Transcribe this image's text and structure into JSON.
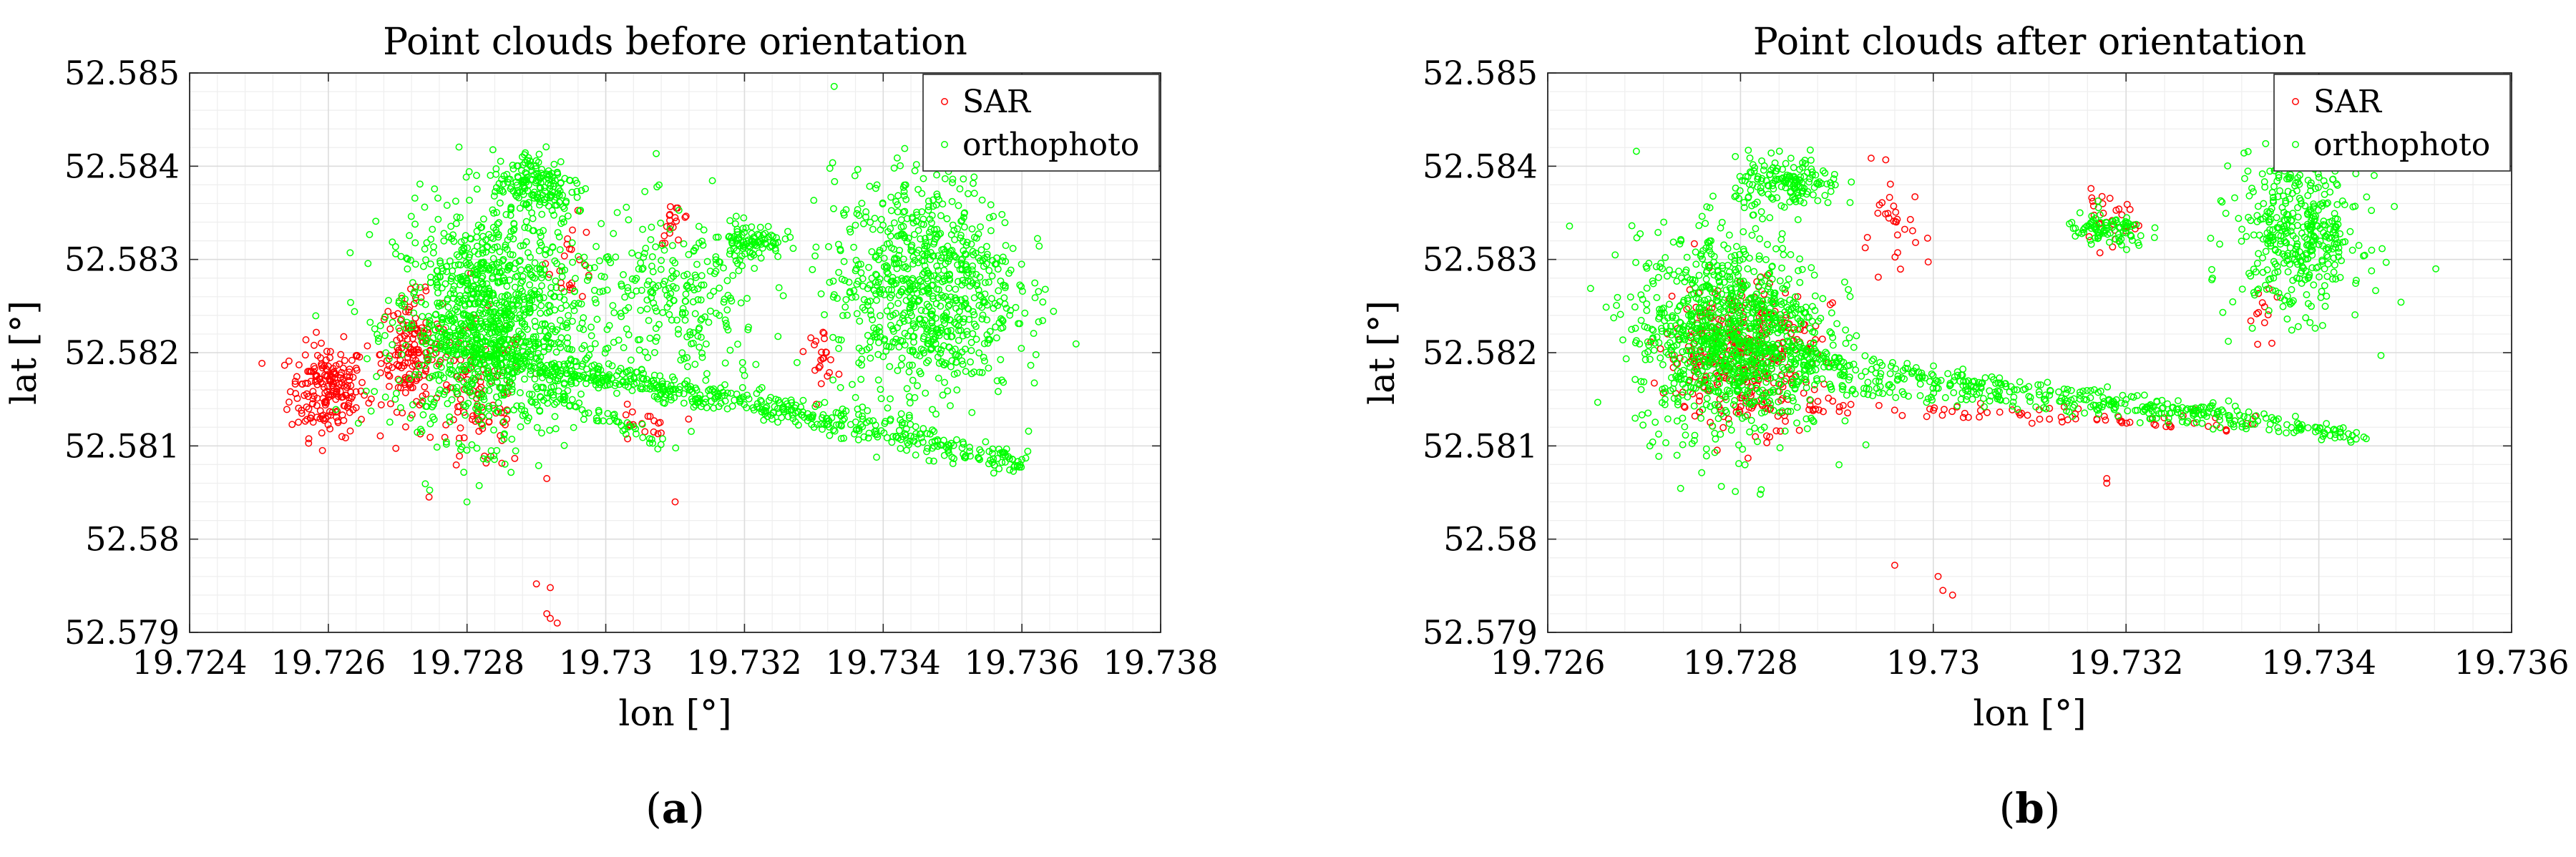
{
  "chart_data": [
    {
      "type": "scatter",
      "title": "Point clouds before orientation",
      "xlabel": "lon [°]",
      "ylabel": "lat [°]",
      "xlim": [
        19.724,
        19.738
      ],
      "ylim": [
        52.579,
        52.585
      ],
      "xticks": [
        "19.724",
        "19.726",
        "19.728",
        "19.73",
        "19.732",
        "19.734",
        "19.736",
        "19.738"
      ],
      "yticks": [
        "52.579",
        "52.58",
        "52.581",
        "52.582",
        "52.583",
        "52.584",
        "52.585"
      ],
      "grid": true,
      "legend_position": "top-right",
      "panel_label": "a",
      "series": [
        {
          "name": "SAR",
          "color": "#ff0000",
          "clusters": [
            {
              "center": [
                19.726,
                52.5816
              ],
              "spread": [
                0.0005,
                0.00045
              ],
              "count": 200
            },
            {
              "center": [
                19.7272,
                52.582
              ],
              "spread": [
                0.0004,
                0.00055
              ],
              "count": 160
            },
            {
              "center": [
                19.7282,
                52.5815
              ],
              "spread": [
                0.0006,
                0.00075
              ],
              "count": 110
            },
            {
              "center": [
                19.7295,
                52.583
              ],
              "spread": [
                0.0003,
                0.0004
              ],
              "count": 22
            },
            {
              "center": [
                19.731,
                52.5834
              ],
              "spread": [
                0.0002,
                0.0002
              ],
              "count": 18
            },
            {
              "center": [
                19.7331,
                52.582
              ],
              "spread": [
                0.0002,
                0.00025
              ],
              "count": 22
            },
            {
              "center": [
                19.7305,
                52.5812
              ],
              "spread": [
                0.0004,
                0.0002
              ],
              "count": 18
            }
          ],
          "points": [
            [
              19.729,
              52.57952
            ],
            [
              19.7292,
              52.57948
            ],
            [
              19.72915,
              52.5792
            ],
            [
              19.7292,
              52.57915
            ],
            [
              19.7293,
              52.5791
            ],
            [
              19.731,
              52.5804
            ],
            [
              19.72915,
              52.58065
            ]
          ]
        },
        {
          "name": "orthophoto",
          "color": "#00ff00",
          "clusters": [
            {
              "center": [
                19.7283,
                52.5823
              ],
              "spread": [
                0.0012,
                0.0011
              ],
              "count": 1100
            },
            {
              "center": [
                19.729,
                52.5838
              ],
              "spread": [
                0.0006,
                0.00035
              ],
              "count": 180
            },
            {
              "center": [
                19.7321,
                52.5832
              ],
              "spread": [
                0.0004,
                0.00018
              ],
              "count": 90
            },
            {
              "center": [
                19.7346,
                52.5827
              ],
              "spread": [
                0.0012,
                0.0011
              ],
              "count": 800
            },
            {
              "center": [
                19.731,
                52.5825
              ],
              "spread": [
                0.0012,
                0.0009
              ],
              "count": 260
            }
          ],
          "lines": [
            {
              "from": [
                19.7275,
                52.5821
              ],
              "to": [
                19.7361,
                52.5808
              ],
              "count": 380,
              "jitter": 6e-05
            },
            {
              "from": [
                19.7285,
                52.5819
              ],
              "to": [
                19.7345,
                52.5812
              ],
              "count": 180,
              "jitter": 6e-05
            },
            {
              "from": [
                19.729,
                52.5816
              ],
              "to": [
                19.731,
                52.581
              ],
              "count": 60,
              "jitter": 5e-05
            }
          ]
        }
      ]
    },
    {
      "type": "scatter",
      "title": "Point clouds after orientation",
      "xlabel": "lon [°]",
      "ylabel": "lat [°]",
      "xlim": [
        19.726,
        19.736
      ],
      "ylim": [
        52.579,
        52.585
      ],
      "xticks": [
        "19.726",
        "19.728",
        "19.73",
        "19.732",
        "19.734",
        "19.736"
      ],
      "yticks": [
        "52.579",
        "52.58",
        "52.581",
        "52.582",
        "52.583",
        "52.584",
        "52.585"
      ],
      "grid": true,
      "legend_position": "top-right",
      "panel_label": "b",
      "series": [
        {
          "name": "SAR",
          "color": "#ff0000",
          "clusters": [
            {
              "center": [
                19.728,
                52.582
              ],
              "spread": [
                0.0007,
                0.0007
              ],
              "count": 360
            },
            {
              "center": [
                19.7296,
                52.5833
              ],
              "spread": [
                0.0003,
                0.0005
              ],
              "count": 30
            },
            {
              "center": [
                19.7318,
                52.5834
              ],
              "spread": [
                0.0003,
                0.00025
              ],
              "count": 30
            },
            {
              "center": [
                19.7334,
                52.5824
              ],
              "spread": [
                0.00015,
                0.0003
              ],
              "count": 12
            }
          ],
          "lines": [
            {
              "from": [
                19.7278,
                52.5815
              ],
              "to": [
                19.7334,
                52.5812
              ],
              "count": 90,
              "jitter": 5e-05
            }
          ],
          "points": [
            [
              19.7296,
              52.57972
            ],
            [
              19.73005,
              52.5796
            ],
            [
              19.7301,
              52.57945
            ],
            [
              19.7302,
              52.5794
            ],
            [
              19.7318,
              52.58065
            ],
            [
              19.7318,
              52.5806
            ]
          ]
        },
        {
          "name": "orthophoto",
          "color": "#00ff00",
          "clusters": [
            {
              "center": [
                19.7279,
                52.5822
              ],
              "spread": [
                0.0009,
                0.001
              ],
              "count": 1000
            },
            {
              "center": [
                19.7285,
                52.5838
              ],
              "spread": [
                0.0005,
                0.00025
              ],
              "count": 160
            },
            {
              "center": [
                19.7318,
                52.5833
              ],
              "spread": [
                0.0004,
                0.00018
              ],
              "count": 90
            },
            {
              "center": [
                19.7338,
                52.5833
              ],
              "spread": [
                0.0006,
                0.0008
              ],
              "count": 420
            }
          ],
          "lines": [
            {
              "from": [
                19.7275,
                52.5821
              ],
              "to": [
                19.7345,
                52.5811
              ],
              "count": 380,
              "jitter": 6e-05
            },
            {
              "from": [
                19.7285,
                52.5817
              ],
              "to": [
                19.733,
                52.5813
              ],
              "count": 150,
              "jitter": 6e-05
            }
          ]
        }
      ]
    }
  ]
}
